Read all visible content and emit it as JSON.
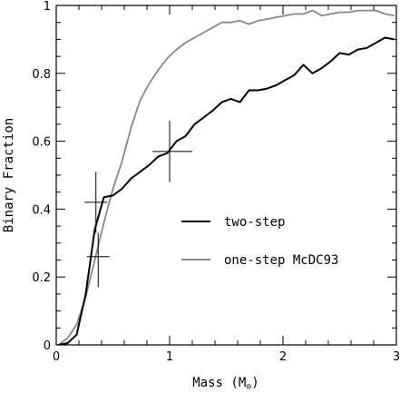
{
  "chart_data": {
    "type": "line",
    "title": "",
    "xlabel": "Mass (M",
    "xlabel_sub": "⊙",
    "xlabel_close": ")",
    "ylabel": "Binary Fraction",
    "xlim": [
      0,
      3
    ],
    "ylim": [
      0,
      1
    ],
    "xticks": [
      0,
      1,
      2,
      3
    ],
    "yticks": [
      0,
      0.2,
      0.4,
      0.6,
      0.8,
      1
    ],
    "xtick_labels": [
      "0",
      "1",
      "2",
      "3"
    ],
    "ytick_labels": [
      "0",
      "0.2",
      "0.4",
      "0.6",
      "0.8",
      "1"
    ],
    "legend_position": "center-right",
    "series": [
      {
        "name": "two-step",
        "color": "#000000",
        "x": [
          0.02,
          0.1,
          0.18,
          0.26,
          0.34,
          0.42,
          0.5,
          0.58,
          0.66,
          0.74,
          0.82,
          0.9,
          0.98,
          1.06,
          1.14,
          1.22,
          1.3,
          1.38,
          1.46,
          1.54,
          1.62,
          1.7,
          1.78,
          1.86,
          1.94,
          2.02,
          2.1,
          2.18,
          2.26,
          2.34,
          2.42,
          2.5,
          2.58,
          2.66,
          2.74,
          2.82,
          2.9,
          2.98
        ],
        "y": [
          0.0,
          0.005,
          0.03,
          0.15,
          0.34,
          0.435,
          0.44,
          0.46,
          0.49,
          0.51,
          0.53,
          0.555,
          0.565,
          0.6,
          0.615,
          0.65,
          0.67,
          0.69,
          0.715,
          0.725,
          0.715,
          0.75,
          0.75,
          0.755,
          0.765,
          0.78,
          0.795,
          0.825,
          0.8,
          0.815,
          0.835,
          0.86,
          0.855,
          0.87,
          0.875,
          0.89,
          0.905,
          0.9
        ]
      },
      {
        "name": "one-step McDC93",
        "color": "#888888",
        "x": [
          0.02,
          0.1,
          0.18,
          0.26,
          0.34,
          0.42,
          0.5,
          0.58,
          0.66,
          0.74,
          0.82,
          0.9,
          0.98,
          1.06,
          1.14,
          1.22,
          1.3,
          1.38,
          1.46,
          1.54,
          1.62,
          1.7,
          1.78,
          1.86,
          1.94,
          2.02,
          2.1,
          2.18,
          2.26,
          2.34,
          2.42,
          2.5,
          2.58,
          2.66,
          2.74,
          2.82,
          2.9,
          2.98
        ],
        "y": [
          0.0,
          0.02,
          0.06,
          0.14,
          0.25,
          0.36,
          0.46,
          0.54,
          0.64,
          0.72,
          0.77,
          0.81,
          0.845,
          0.87,
          0.89,
          0.905,
          0.92,
          0.935,
          0.95,
          0.95,
          0.955,
          0.945,
          0.955,
          0.96,
          0.965,
          0.97,
          0.975,
          0.975,
          0.985,
          0.97,
          0.975,
          0.98,
          0.98,
          0.985,
          0.985,
          0.985,
          0.975,
          0.97
        ]
      }
    ],
    "error_crosses": [
      {
        "x": 0.35,
        "y": 0.42,
        "xerr_low": 0.25,
        "xerr_high": 0.45,
        "yerr_low": 0.33,
        "yerr_high": 0.51
      },
      {
        "x": 0.37,
        "y": 0.26,
        "xerr_low": 0.27,
        "xerr_high": 0.47,
        "yerr_low": 0.17,
        "yerr_high": 0.33
      },
      {
        "x": 1.0,
        "y": 0.57,
        "xerr_low": 0.85,
        "xerr_high": 1.2,
        "yerr_low": 0.48,
        "yerr_high": 0.66
      }
    ]
  }
}
